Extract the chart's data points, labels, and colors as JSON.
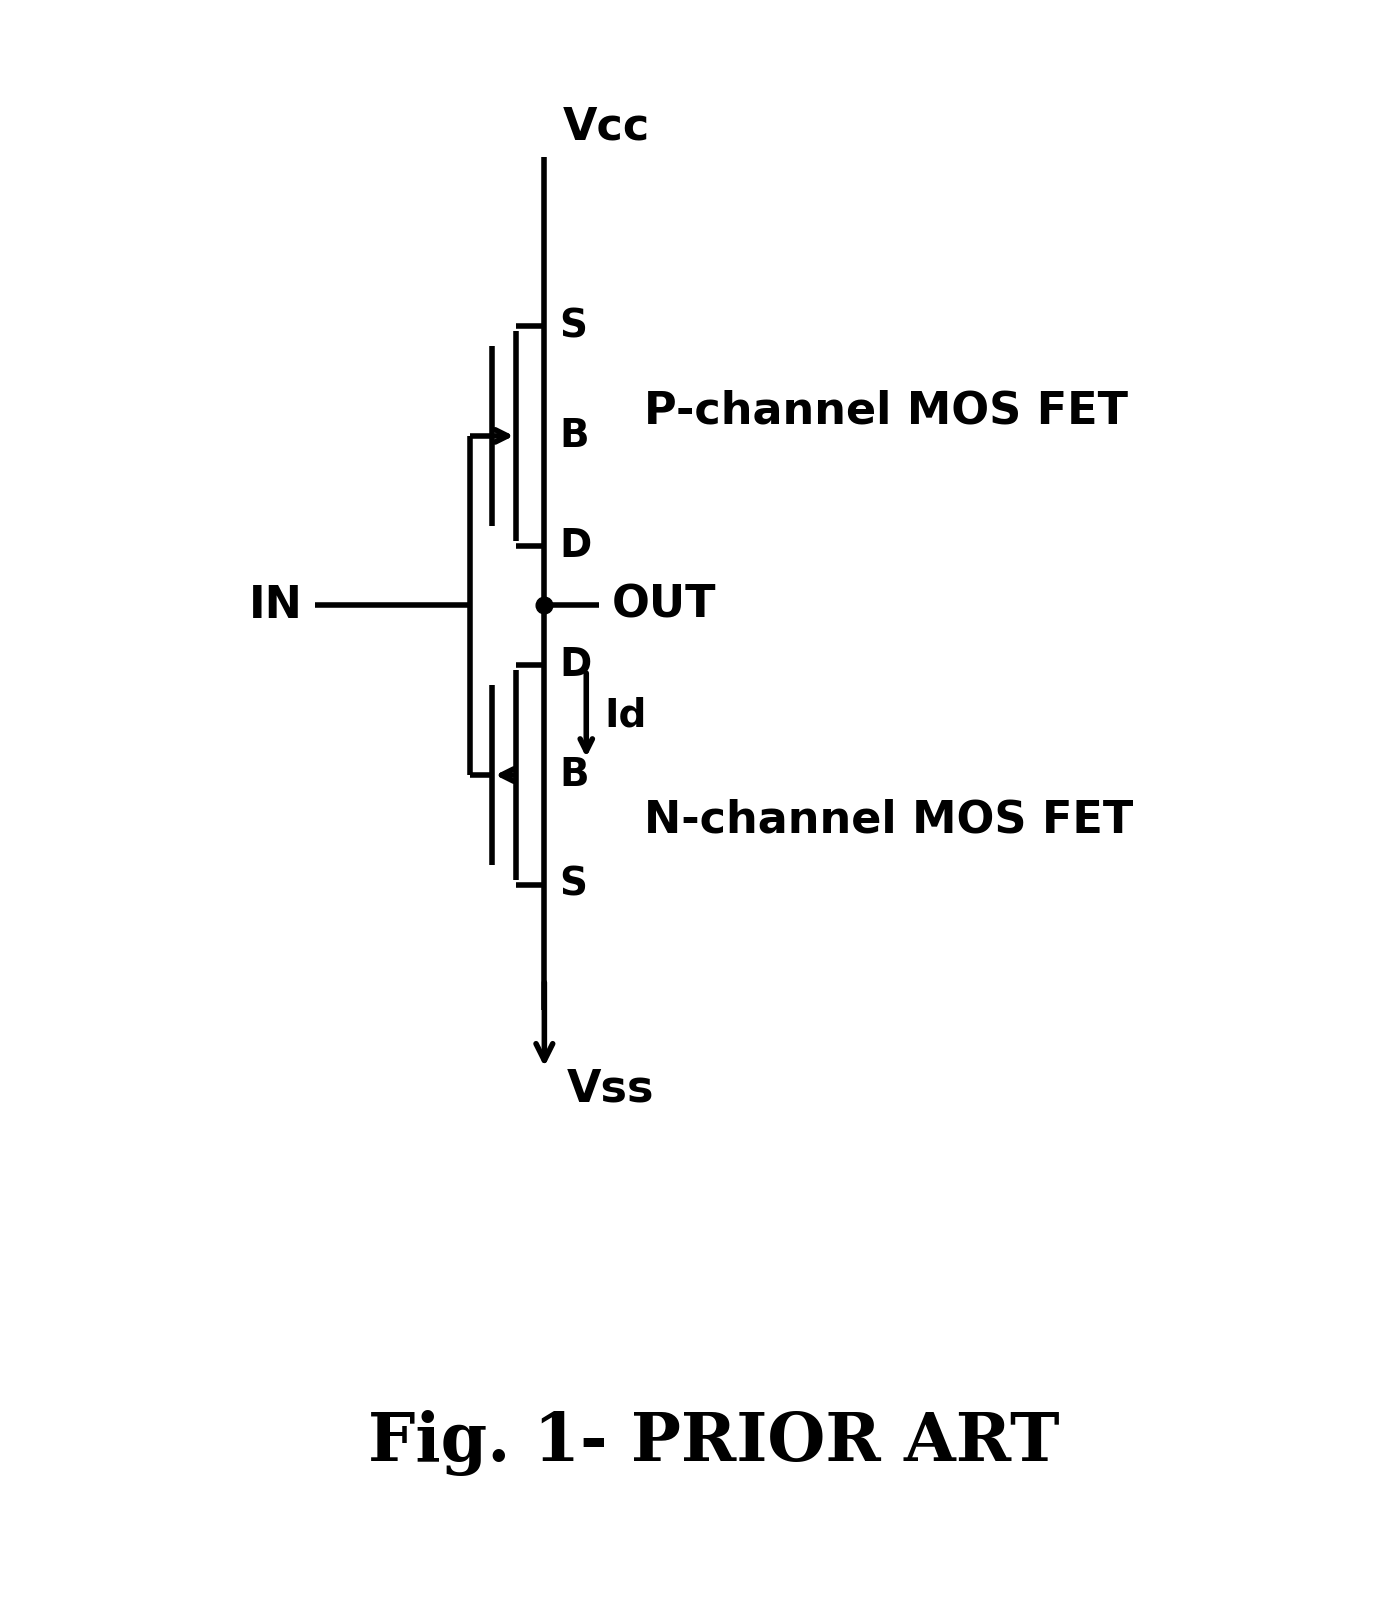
{
  "bg_color": "#ffffff",
  "line_color": "#000000",
  "line_width": 4.0,
  "fig_width": 13.88,
  "fig_height": 16.1,
  "title": "Fig. 1- PRIOR ART",
  "title_fontsize": 48,
  "label_fontsize": 32,
  "small_label_fontsize": 28,
  "vcc_label": "Vcc",
  "vss_label": "Vss",
  "in_label": "IN",
  "out_label": "OUT",
  "id_label": "Id",
  "pmos_label": "P-channel MOS FET",
  "nmos_label": "N-channel MOS FET",
  "s_label": "S",
  "b_label": "B",
  "d_label": "D"
}
